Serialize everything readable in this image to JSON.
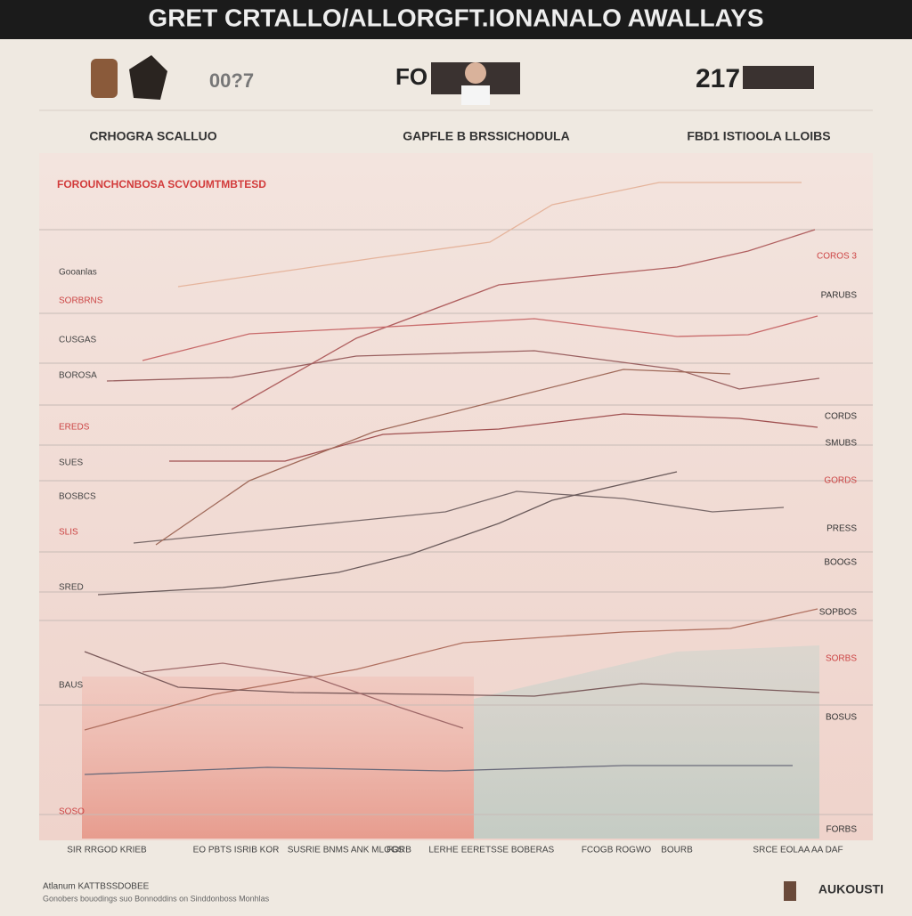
{
  "header": {
    "title": "GRET CRTALLO/ALLORGFT.IONANALO AWALLAYS",
    "badges": [
      "00?7",
      "FO",
      "217"
    ],
    "subtitles": [
      "CRHOGRA SCALLUO",
      "GAPFLE B BRSSICHODULA",
      "FBD1 ISTIOOLA LLOIBS"
    ]
  },
  "chart": {
    "legend": "FOROUNCHCNBOSA SCVOUMTMBTESD",
    "left_labels": [
      "Gooanlas",
      "SORBRNS",
      "CUSGAS",
      "BOROSA",
      "EREDS",
      "SUES",
      "BOSBCS",
      "SLIS",
      "SRED",
      "BAUS",
      "SOSO"
    ],
    "right_labels": [
      "COROS 3",
      "PARUBS",
      "CORDS",
      "SMUBS",
      "GORDS",
      "PRESS",
      "BOOGS",
      "SOPBOS",
      "SORBS",
      "BOSUS",
      "FORBS"
    ],
    "x_labels": [
      "SIR RRGOD KRIEB",
      "EO PBTS ISRIB KOR",
      "SUSRIE BNMS ANK MLOGS",
      "FORB",
      "LERHE",
      "EERETSSE BOBERAS",
      "FCOGB ROGWO",
      "BOURB",
      "SRCE EOLAA AA DAF"
    ]
  },
  "footer": {
    "left": "Atlanum KATTBSSDOBEE",
    "note": "Gonobers bouodings suo Bonnoddins on Sinddonboss Monhlas",
    "right": "AUKOUSTI"
  }
}
